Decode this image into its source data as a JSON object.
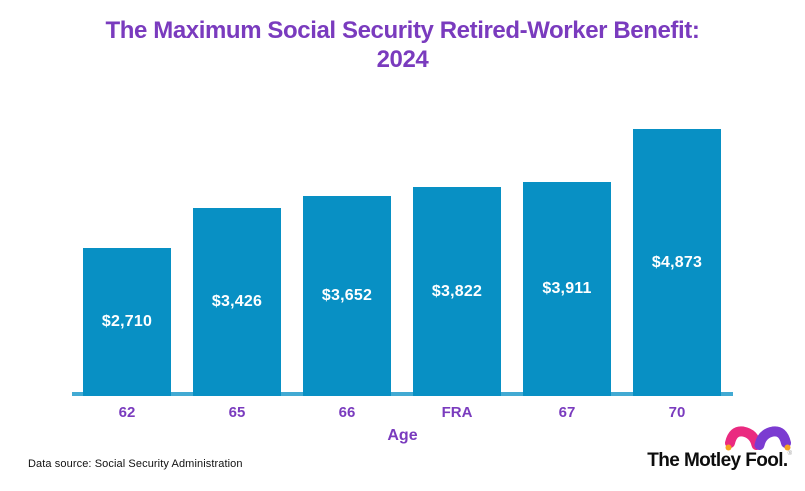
{
  "title": {
    "line1": "The Maximum Social Security Retired-Worker Benefit:",
    "line2": "2024"
  },
  "chart_data": {
    "type": "bar",
    "title": "The Maximum Social Security Retired-Worker Benefit: 2024",
    "categories": [
      "62",
      "65",
      "66",
      "FRA",
      "67",
      "70"
    ],
    "values": [
      2710,
      3426,
      3652,
      3822,
      3911,
      4873
    ],
    "value_labels": [
      "$2,710",
      "$3,426",
      "$3,652",
      "$3,822",
      "$3,911",
      "$4,873"
    ],
    "xlabel": "Age",
    "ylabel": "",
    "ylim": [
      0,
      5000
    ],
    "grid": false,
    "legend": false,
    "value_label_position": "centered-inside-bar",
    "bar_color": "#0890c4",
    "axis_line_color": "#42aad3",
    "value_label_color": "#ffffff",
    "tick_label_color": "#7a3bbe"
  },
  "footer": {
    "data_source": "Data source: Social Security Administration",
    "brand_wordmark": "The Motley Fool.",
    "registered_mark": "®"
  },
  "colors": {
    "title_purple": "#7a3bbe",
    "bar_teal": "#0890c4",
    "axis_teal": "#42aad3",
    "hat_pink": "#ea2a80",
    "hat_purple": "#7b3bd1",
    "hat_gold": "#f6a21e",
    "background": "#ffffff"
  }
}
